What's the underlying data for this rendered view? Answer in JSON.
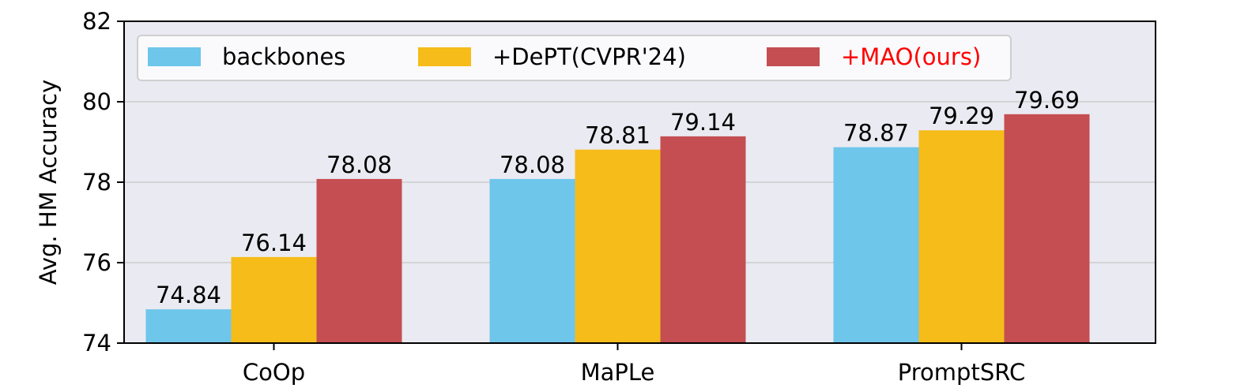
{
  "chart_data": {
    "type": "bar",
    "title": "",
    "xlabel": "",
    "ylabel": "Avg. HM Accuracy",
    "categories": [
      "CoOp",
      "MaPLe",
      "PromptSRC"
    ],
    "series": [
      {
        "name": "backbones",
        "values": [
          74.84,
          78.08,
          78.87
        ],
        "color": "#6ec6eb"
      },
      {
        "name": "+DePT(CVPR'24)",
        "values": [
          76.14,
          78.81,
          79.29
        ],
        "color": "#f5bc1a"
      },
      {
        "name": "+MAO(ours)",
        "values": [
          78.08,
          79.14,
          79.69
        ],
        "color": "#c44e52",
        "label_color": "#ff0000"
      }
    ],
    "value_labels": [
      [
        "74.84",
        "78.08",
        "78.87"
      ],
      [
        "76.14",
        "78.81",
        "79.29"
      ],
      [
        "78.08",
        "79.14",
        "79.69"
      ]
    ],
    "ylim": [
      74,
      82
    ],
    "yticks": [
      74,
      76,
      78,
      80,
      82
    ],
    "ytick_labels": [
      "74",
      "76",
      "78",
      "80",
      "82"
    ],
    "grid": true,
    "legend_position": "top-left",
    "background": "#eaeaf2",
    "grid_color": "#cccccc"
  }
}
